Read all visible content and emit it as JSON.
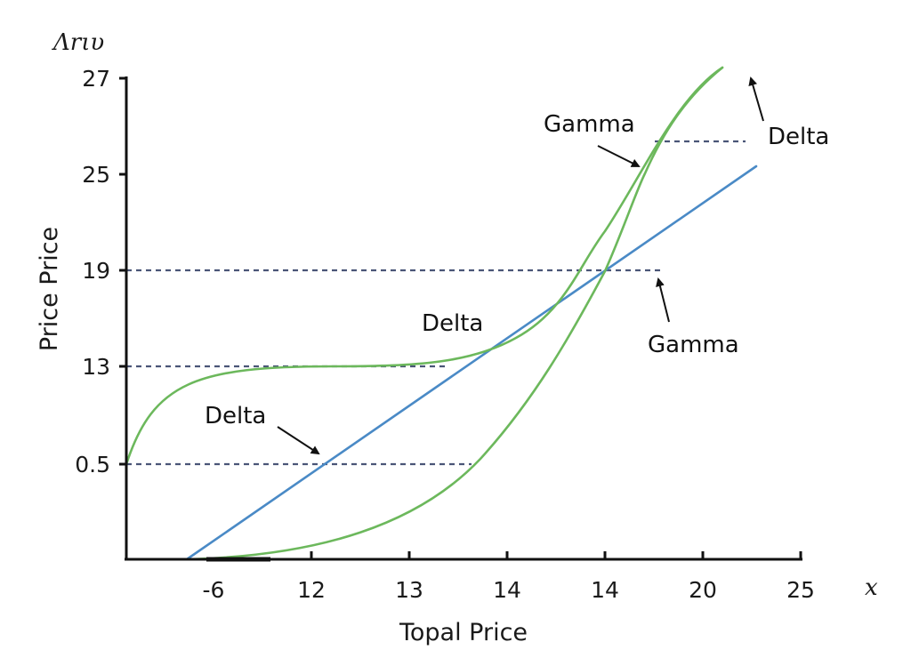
{
  "chart_data": {
    "type": "line",
    "title": "",
    "corner_label": "Λrιυ",
    "x_symbol": "x",
    "xlabel": "Topal Price",
    "ylabel": "Price Price",
    "x_ticks": [
      "-6",
      "12",
      "13",
      "14",
      "14",
      "20",
      "25"
    ],
    "y_ticks": [
      "0.5",
      "13",
      "19",
      "25",
      "27"
    ],
    "grid": false,
    "colors": {
      "blue": "#4a8ac6",
      "green": "#6cb85c",
      "guide": "#4a5577",
      "axis": "#111111"
    },
    "series": [
      {
        "color": "blue",
        "points": [
          [
            -6,
            0
          ],
          [
            12,
            0.5
          ],
          [
            14,
            13.5
          ],
          [
            14,
            19
          ],
          [
            25,
            25.5
          ]
        ]
      },
      {
        "color": "green",
        "points": [
          [
            -6,
            0.5
          ],
          [
            12,
            13
          ],
          [
            13,
            13
          ],
          [
            14,
            13.5
          ],
          [
            14,
            19
          ],
          [
            20,
            27
          ]
        ]
      },
      {
        "color": "green",
        "points": [
          [
            -6,
            0
          ],
          [
            13,
            0.5
          ],
          [
            14,
            19
          ],
          [
            20,
            25
          ],
          [
            20,
            27
          ]
        ]
      }
    ],
    "reference_lines": [
      {
        "y": "0.5",
        "from_x": "-6",
        "to_x": "13"
      },
      {
        "y": "13",
        "from_x": "-6",
        "to_x": "13"
      },
      {
        "y": "19",
        "from_x": "-6",
        "to_x": "20"
      },
      {
        "y": "27",
        "from_x": "20",
        "to_x": "25"
      }
    ],
    "annotations": [
      {
        "text": "Delta"
      },
      {
        "text": "Delta"
      },
      {
        "text": "Gamma"
      },
      {
        "text": "Gamma"
      },
      {
        "text": "Delta"
      }
    ]
  }
}
